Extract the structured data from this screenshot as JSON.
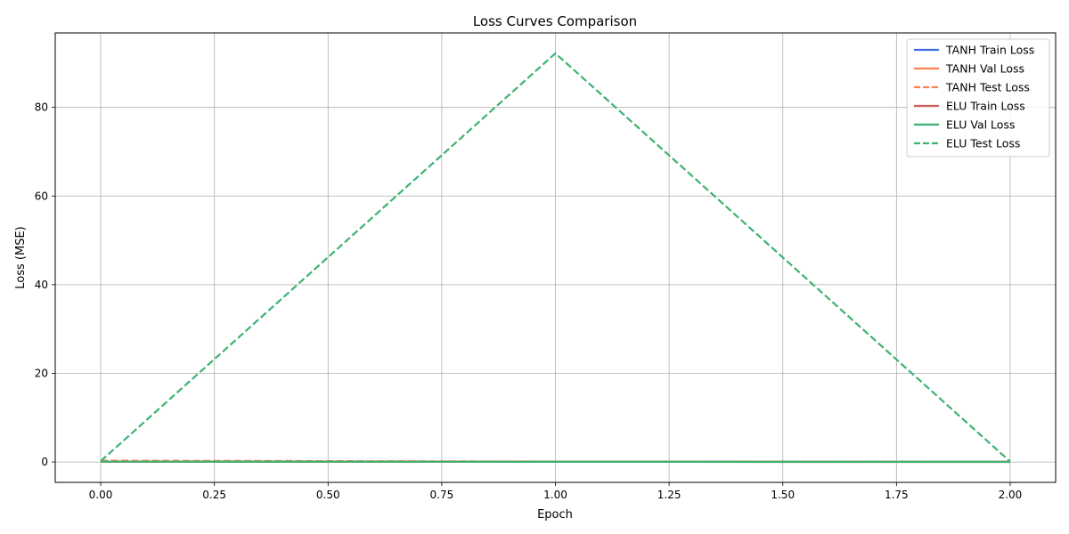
{
  "chart_data": {
    "type": "line",
    "title": "Loss Curves Comparison",
    "xlabel": "Epoch",
    "ylabel": "Loss (MSE)",
    "xlim": [
      -0.1,
      2.1
    ],
    "ylim": [
      -4.6,
      96.8
    ],
    "x_ticks": [
      0.0,
      0.25,
      0.5,
      0.75,
      1.0,
      1.25,
      1.5,
      1.75,
      2.0
    ],
    "x_tick_labels": [
      "0.00",
      "0.25",
      "0.50",
      "0.75",
      "1.00",
      "1.25",
      "1.50",
      "1.75",
      "2.00"
    ],
    "y_ticks": [
      0,
      20,
      40,
      60,
      80
    ],
    "y_tick_labels": [
      "0",
      "20",
      "40",
      "60",
      "80"
    ],
    "grid": true,
    "legend_position": "top-right",
    "x": [
      0,
      1,
      2
    ],
    "series": [
      {
        "name": "TANH Train Loss",
        "values": [
          0.08,
          0.04,
          0.03
        ],
        "color": "#4169e1",
        "dash": "solid"
      },
      {
        "name": "TANH Val Loss",
        "values": [
          0.1,
          0.05,
          0.04
        ],
        "color": "#ff7f50",
        "dash": "solid"
      },
      {
        "name": "TANH Test Loss",
        "values": [
          0.3,
          0.1,
          0.05
        ],
        "color": "#ff7f50",
        "dash": "dashed"
      },
      {
        "name": "ELU Train Loss",
        "values": [
          0.06,
          0.03,
          0.02
        ],
        "color": "#cd5c5c",
        "dash": "solid"
      },
      {
        "name": "ELU Val Loss",
        "values": [
          0.08,
          0.05,
          0.04
        ],
        "color": "#3cb371",
        "dash": "solid"
      },
      {
        "name": "ELU Test Loss",
        "values": [
          0.2,
          92.2,
          0.1
        ],
        "color": "#3cb371",
        "dash": "dashed"
      }
    ]
  }
}
